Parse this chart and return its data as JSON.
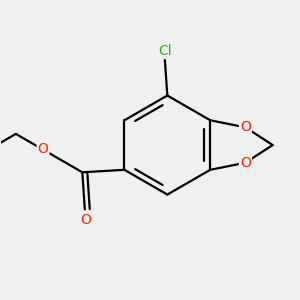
{
  "bg_color": "#f0f0f0",
  "bond_color": "#000000",
  "cl_color": "#22bb00",
  "o_color": "#ff2200",
  "line_width": 1.6,
  "figsize": [
    3.0,
    3.0
  ],
  "dpi": 100,
  "xlim": [
    -3.0,
    3.0
  ],
  "ylim": [
    -3.0,
    3.0
  ]
}
